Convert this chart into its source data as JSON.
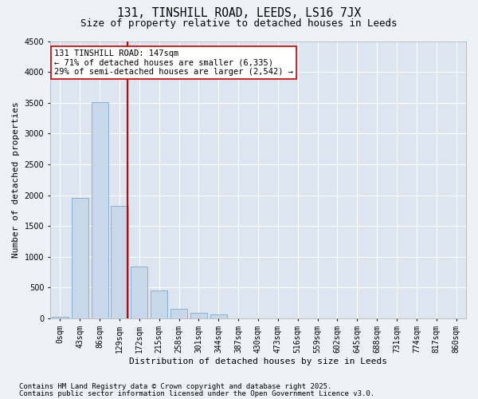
{
  "title1": "131, TINSHILL ROAD, LEEDS, LS16 7JX",
  "title2": "Size of property relative to detached houses in Leeds",
  "xlabel": "Distribution of detached houses by size in Leeds",
  "ylabel": "Number of detached properties",
  "categories": [
    "0sqm",
    "43sqm",
    "86sqm",
    "129sqm",
    "172sqm",
    "215sqm",
    "258sqm",
    "301sqm",
    "344sqm",
    "387sqm",
    "430sqm",
    "473sqm",
    "516sqm",
    "559sqm",
    "602sqm",
    "645sqm",
    "688sqm",
    "731sqm",
    "774sqm",
    "817sqm",
    "860sqm"
  ],
  "values": [
    30,
    1950,
    3510,
    1820,
    840,
    450,
    150,
    95,
    65,
    0,
    0,
    0,
    0,
    0,
    0,
    0,
    0,
    0,
    0,
    0,
    0
  ],
  "bar_color": "#c8d8ea",
  "bar_edge_color": "#7aaacc",
  "vline_x": 3.42,
  "vline_color": "#cc0000",
  "annotation_line1": "131 TINSHILL ROAD: 147sqm",
  "annotation_line2": "← 71% of detached houses are smaller (6,335)",
  "annotation_line3": "29% of semi-detached houses are larger (2,542) →",
  "annotation_box_color": "#ffffff",
  "annotation_box_edge": "#cc0000",
  "ylim": [
    0,
    4500
  ],
  "yticks": [
    0,
    500,
    1000,
    1500,
    2000,
    2500,
    3000,
    3500,
    4000,
    4500
  ],
  "footer1": "Contains HM Land Registry data © Crown copyright and database right 2025.",
  "footer2": "Contains public sector information licensed under the Open Government Licence v3.0.",
  "bg_color": "#eef2f7",
  "plot_bg_color": "#dde6f0",
  "grid_color": "#ffffff",
  "title1_fontsize": 10.5,
  "title2_fontsize": 9,
  "axis_label_fontsize": 8,
  "tick_fontsize": 7,
  "annotation_fontsize": 7.5,
  "footer_fontsize": 6.5
}
